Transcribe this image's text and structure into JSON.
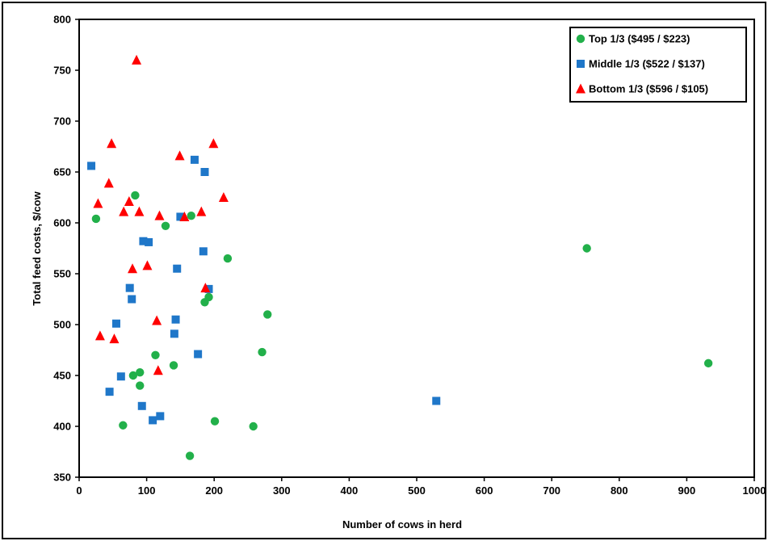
{
  "chart_data": {
    "type": "scatter",
    "title": "",
    "xlabel": "Number of cows in herd",
    "ylabel": "Total feed costs,  $/cow",
    "xlim": [
      0,
      1000
    ],
    "ylim": [
      350,
      800
    ],
    "x_ticks": [
      "0",
      "100",
      "200",
      "300",
      "400",
      "500",
      "600",
      "700",
      "800",
      "900",
      "1000"
    ],
    "y_ticks": [
      "350",
      "400",
      "450",
      "500",
      "550",
      "600",
      "650",
      "700",
      "750",
      "800"
    ],
    "grid": false,
    "legend_position": "top-right",
    "series": [
      {
        "name": "Top 1/3 ($495 / $223)",
        "marker": "circle",
        "color": "#22b04a",
        "points": [
          [
            25,
            604
          ],
          [
            65,
            401
          ],
          [
            80,
            450
          ],
          [
            83,
            627
          ],
          [
            90,
            440
          ],
          [
            90,
            453
          ],
          [
            113,
            470
          ],
          [
            128,
            597
          ],
          [
            140,
            460
          ],
          [
            164,
            371
          ],
          [
            166,
            607
          ],
          [
            186,
            522
          ],
          [
            192,
            527
          ],
          [
            201,
            405
          ],
          [
            220,
            565
          ],
          [
            258,
            400
          ],
          [
            271,
            473
          ],
          [
            279,
            510
          ],
          [
            752,
            575
          ],
          [
            932,
            462
          ]
        ]
      },
      {
        "name": "Middle 1/3 ($522 / $137)",
        "marker": "square",
        "color": "#1f77c9",
        "points": [
          [
            18,
            656
          ],
          [
            45,
            434
          ],
          [
            55,
            501
          ],
          [
            62,
            449
          ],
          [
            75,
            536
          ],
          [
            78,
            525
          ],
          [
            93,
            420
          ],
          [
            95,
            582
          ],
          [
            103,
            581
          ],
          [
            109,
            406
          ],
          [
            120,
            410
          ],
          [
            141,
            491
          ],
          [
            143,
            505
          ],
          [
            145,
            555
          ],
          [
            150,
            606
          ],
          [
            171,
            662
          ],
          [
            176,
            471
          ],
          [
            184,
            572
          ],
          [
            186,
            650
          ],
          [
            192,
            535
          ],
          [
            529,
            425
          ]
        ]
      },
      {
        "name": "Bottom 1/3 ($596 / $105)",
        "marker": "triangle",
        "color": "#ff0000",
        "points": [
          [
            28,
            619
          ],
          [
            31,
            489
          ],
          [
            44,
            639
          ],
          [
            48,
            678
          ],
          [
            52,
            486
          ],
          [
            66,
            611
          ],
          [
            74,
            621
          ],
          [
            79,
            555
          ],
          [
            85,
            760
          ],
          [
            89,
            611
          ],
          [
            101,
            558
          ],
          [
            115,
            504
          ],
          [
            117,
            455
          ],
          [
            119,
            607
          ],
          [
            149,
            666
          ],
          [
            156,
            606
          ],
          [
            181,
            611
          ],
          [
            187,
            536
          ],
          [
            199,
            678
          ],
          [
            214,
            625
          ]
        ]
      }
    ]
  }
}
